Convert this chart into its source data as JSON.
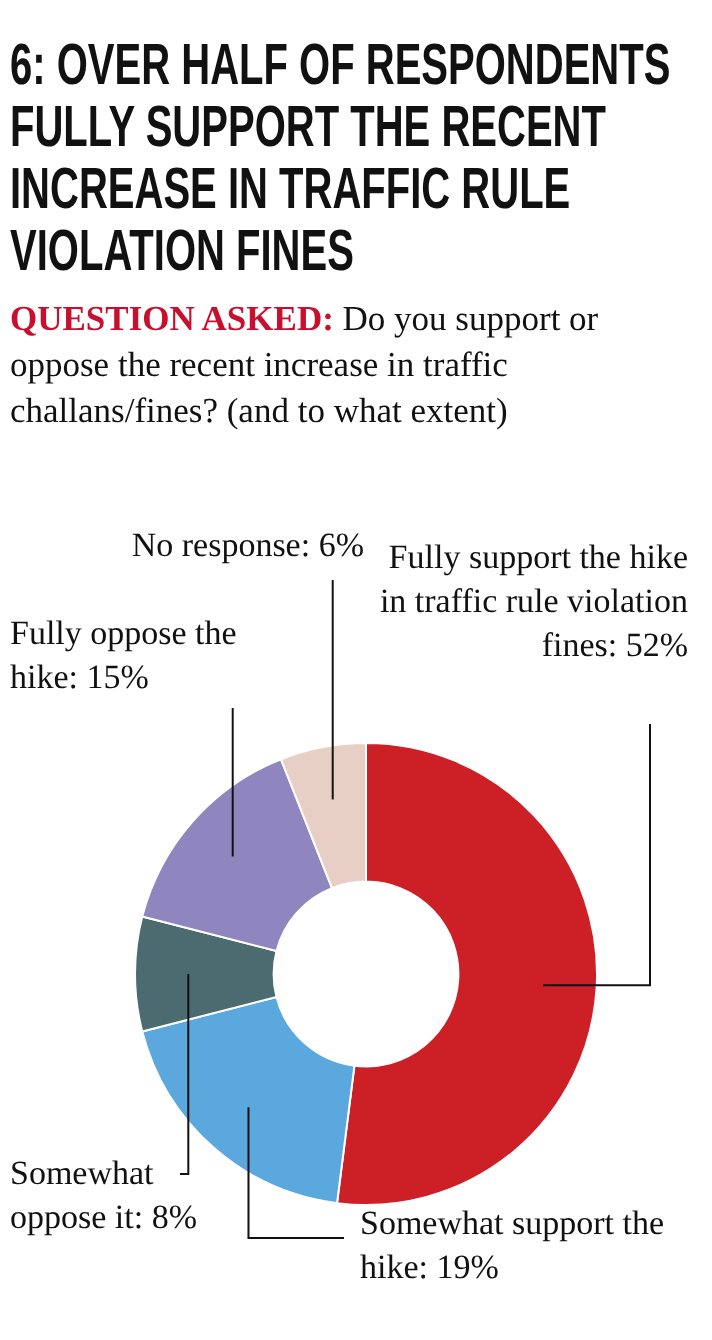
{
  "chart_data": {
    "type": "donut",
    "title": "6: OVER HALF OF RESPONDENTS FULLY SUPPORT THE RECENT INCREASE IN TRAFFIC RULE VIOLATION FINES",
    "subtitle": "QUESTION ASKED: Do you support or oppose the recent increase in traffic challans/fines? (and to what extent)",
    "categories": [
      "Fully support the hike in traffic rule violation fines",
      "Somewhat support the hike",
      "Somewhat oppose it",
      "Fully oppose the hike",
      "No response"
    ],
    "values": [
      52,
      19,
      8,
      15,
      6
    ],
    "value_labels": [
      "52%",
      "19%",
      "8%",
      "15%",
      "6%"
    ],
    "colors": [
      "#cc1f26",
      "#5aa8de",
      "#4b6b70",
      "#8f86c0",
      "#e8cfc5"
    ],
    "legend": false
  }
}
